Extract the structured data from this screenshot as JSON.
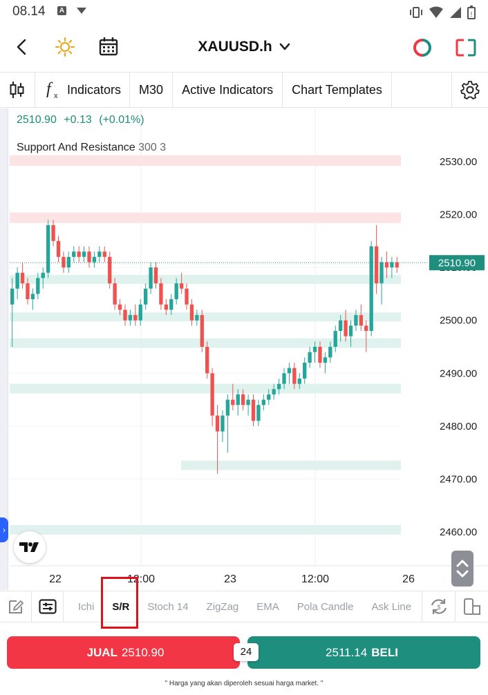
{
  "status_bar": {
    "time": "08.14",
    "notification_letter": "A"
  },
  "header": {
    "symbol": "XAUUSD.h"
  },
  "toolbar": {
    "indicators_label": "Indicators",
    "timeframe": "M30",
    "active_indicators_label": "Active Indicators",
    "chart_templates_label": "Chart Templates"
  },
  "chart_info": {
    "last_price": "2510.90",
    "change": "+0.13",
    "change_pct": "(+0.01%)",
    "indicator_name": "Support And Resistance",
    "indicator_params": "300 3",
    "current_price_tag": "2510.90"
  },
  "chart_data": {
    "type": "candlestick",
    "y_ticks": [
      "2530.00",
      "2520.00",
      "2510.00",
      "2500.00",
      "2490.00",
      "2480.00",
      "2470.00",
      "2460.00"
    ],
    "x_ticks": [
      "22",
      "12:00",
      "23",
      "12:00",
      "26"
    ],
    "ylim": [
      2457,
      2532
    ],
    "candles": [
      [
        2503,
        2508,
        2495,
        2506
      ],
      [
        2506,
        2510,
        2504,
        2509
      ],
      [
        2509,
        2511,
        2506,
        2507
      ],
      [
        2507,
        2508,
        2503,
        2504
      ],
      [
        2504,
        2506,
        2502,
        2505
      ],
      [
        2505,
        2509,
        2504,
        2508
      ],
      [
        2508,
        2510,
        2506,
        2509
      ],
      [
        2509,
        2519,
        2508,
        2518
      ],
      [
        2518,
        2519,
        2514,
        2515
      ],
      [
        2515,
        2516,
        2511,
        2512
      ],
      [
        2512,
        2513,
        2509,
        2510
      ],
      [
        2510,
        2513,
        2509,
        2512
      ],
      [
        2512,
        2514,
        2511,
        2513
      ],
      [
        2513,
        2514,
        2511,
        2512
      ],
      [
        2512,
        2514,
        2511,
        2513
      ],
      [
        2513,
        2514,
        2510,
        2511
      ],
      [
        2511,
        2513,
        2510,
        2512
      ],
      [
        2512,
        2514,
        2511,
        2513
      ],
      [
        2513,
        2514,
        2511,
        2512
      ],
      [
        2512,
        2513,
        2506,
        2507
      ],
      [
        2507,
        2508,
        2502,
        2503
      ],
      [
        2503,
        2504,
        2501,
        2502
      ],
      [
        2502,
        2503,
        2499,
        2500
      ],
      [
        2500,
        2502,
        2499,
        2501
      ],
      [
        2501,
        2503,
        2499,
        2500
      ],
      [
        2500,
        2504,
        2499,
        2503
      ],
      [
        2503,
        2507,
        2502,
        2506
      ],
      [
        2506,
        2511,
        2505,
        2510
      ],
      [
        2510,
        2511,
        2506,
        2507
      ],
      [
        2507,
        2508,
        2502,
        2503
      ],
      [
        2503,
        2504,
        2501,
        2502
      ],
      [
        2502,
        2505,
        2501,
        2504
      ],
      [
        2504,
        2508,
        2503,
        2507
      ],
      [
        2507,
        2509,
        2505,
        2506
      ],
      [
        2506,
        2507,
        2502,
        2503
      ],
      [
        2503,
        2504,
        2499,
        2500
      ],
      [
        2500,
        2502,
        2499,
        2501
      ],
      [
        2501,
        2502,
        2494,
        2495
      ],
      [
        2495,
        2496,
        2489,
        2490
      ],
      [
        2490,
        2491,
        2480,
        2482
      ],
      [
        2482,
        2484,
        2471,
        2479
      ],
      [
        2479,
        2483,
        2477,
        2482
      ],
      [
        2482,
        2486,
        2475,
        2485
      ],
      [
        2485,
        2488,
        2483,
        2484
      ],
      [
        2484,
        2487,
        2482,
        2486
      ],
      [
        2486,
        2487,
        2483,
        2484
      ],
      [
        2484,
        2486,
        2482,
        2485
      ],
      [
        2485,
        2486,
        2480,
        2481
      ],
      [
        2481,
        2485,
        2480,
        2484
      ],
      [
        2484,
        2486,
        2483,
        2485
      ],
      [
        2485,
        2487,
        2484,
        2486
      ],
      [
        2486,
        2488,
        2485,
        2487
      ],
      [
        2487,
        2489,
        2486,
        2488
      ],
      [
        2488,
        2491,
        2487,
        2490
      ],
      [
        2490,
        2492,
        2488,
        2491
      ],
      [
        2491,
        2492,
        2487,
        2488
      ],
      [
        2488,
        2490,
        2487,
        2489
      ],
      [
        2489,
        2493,
        2488,
        2492
      ],
      [
        2492,
        2495,
        2491,
        2494
      ],
      [
        2494,
        2496,
        2492,
        2495
      ],
      [
        2495,
        2496,
        2491,
        2492
      ],
      [
        2492,
        2494,
        2490,
        2493
      ],
      [
        2493,
        2496,
        2492,
        2495
      ],
      [
        2495,
        2499,
        2494,
        2498
      ],
      [
        2498,
        2501,
        2496,
        2500
      ],
      [
        2500,
        2502,
        2496,
        2497
      ],
      [
        2497,
        2500,
        2495,
        2499
      ],
      [
        2499,
        2502,
        2498,
        2501
      ],
      [
        2501,
        2503,
        2498,
        2499
      ],
      [
        2499,
        2500,
        2494,
        2498
      ],
      [
        2498,
        2515,
        2497,
        2514
      ],
      [
        2514,
        2518,
        2505,
        2507
      ],
      [
        2507,
        2512,
        2503,
        2511
      ],
      [
        2511,
        2513,
        2508,
        2510
      ],
      [
        2510,
        2512,
        2508,
        2511
      ],
      [
        2511,
        2512,
        2509,
        2510
      ]
    ]
  },
  "indicator_bar": {
    "items": [
      "Ichi",
      "S/R",
      "Stoch 14",
      "ZigZag",
      "EMA",
      "Pola Candle",
      "Ask Line"
    ]
  },
  "trade": {
    "sell_label": "JUAL",
    "sell_price": "2510.90",
    "buy_price": "2511.14",
    "buy_label": "BELI",
    "spread": "24",
    "footnote": "\" Harga yang akan diperoleh sesuai harga market. \""
  },
  "colors": {
    "bull": "#26a69a",
    "bear": "#ef5350",
    "support_zone": "#dff2ee",
    "resistance_zone": "#fde4e4",
    "price_tag": "#1e8f7f",
    "sell": "#f23645",
    "buy": "#1e8f7f"
  }
}
